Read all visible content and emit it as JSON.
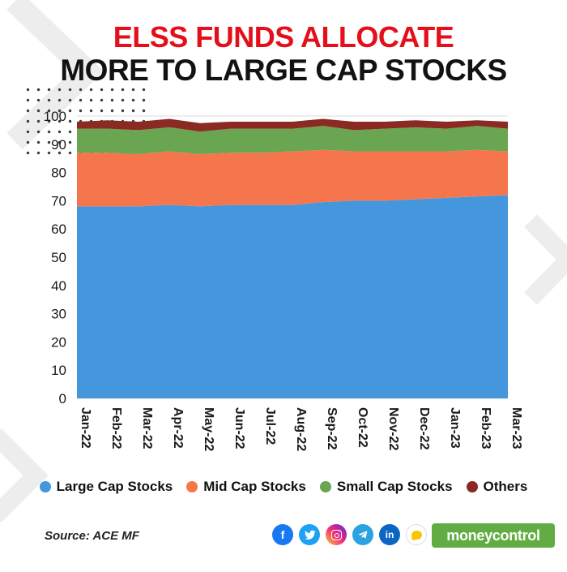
{
  "title": {
    "line1": "ELSS FUNDS ALLOCATE",
    "line2": "MORE TO LARGE CAP STOCKS",
    "line1_color": "#e50f1b",
    "line2_color": "#121212"
  },
  "chart_data": {
    "type": "area",
    "stacked": true,
    "title": "ELSS FUNDS ALLOCATE MORE TO LARGE CAP STOCKS",
    "xlabel": "",
    "ylabel": "",
    "ylim": [
      0,
      100
    ],
    "yticks": [
      0,
      10,
      20,
      30,
      40,
      50,
      60,
      70,
      80,
      90,
      100
    ],
    "grid": true,
    "grid_color": "#d9d9d9",
    "legend_position": "bottom",
    "x": [
      "Jan-22",
      "Feb-22",
      "Mar-22",
      "Apr-22",
      "May-22",
      "Jun-22",
      "Jul-22",
      "Aug-22",
      "Sep-22",
      "Oct-22",
      "Nov-22",
      "Dec-22",
      "Jan-23",
      "Feb-23",
      "Mar-23"
    ],
    "series": [
      {
        "name": "Large Cap Stocks",
        "color": "#4496dd",
        "values": [
          68,
          68,
          68,
          68.5,
          68,
          68.5,
          68.5,
          68.5,
          69.5,
          70,
          70,
          70.5,
          71,
          71.5,
          72
        ]
      },
      {
        "name": "Mid Cap Stocks",
        "color": "#f5764c",
        "values": [
          19,
          19,
          18.5,
          19,
          18.5,
          18.5,
          18.5,
          19,
          18.5,
          17.5,
          17.5,
          17,
          16.5,
          16.5,
          15.5
        ]
      },
      {
        "name": "Small Cap Stocks",
        "color": "#6aa552",
        "values": [
          8.5,
          8.5,
          8.5,
          8.5,
          8,
          8.5,
          8.5,
          8,
          8.5,
          7.5,
          8,
          8.5,
          8,
          8.5,
          8
        ]
      },
      {
        "name": "Others",
        "color": "#8a2a22",
        "values": [
          2.5,
          3,
          3,
          3,
          3,
          2.5,
          2.5,
          2.5,
          2.5,
          3,
          2.5,
          2.5,
          2.5,
          2,
          2.5
        ]
      }
    ]
  },
  "footer": {
    "source": "Source: ACE MF",
    "brand": "moneycontrol",
    "brand_color": "#62ad43"
  },
  "social": {
    "icons": [
      {
        "name": "facebook",
        "bg": "#1877f2"
      },
      {
        "name": "twitter",
        "bg": "#1da1f2"
      },
      {
        "name": "instagram",
        "bg": "linear-gradient(45deg,#f9ce34,#ee2a7b,#6228d7)"
      },
      {
        "name": "telegram",
        "bg": "#2aa3e0"
      },
      {
        "name": "linkedin",
        "bg": "#0a66c2"
      },
      {
        "name": "koo",
        "bg": "#ffffff"
      }
    ]
  }
}
